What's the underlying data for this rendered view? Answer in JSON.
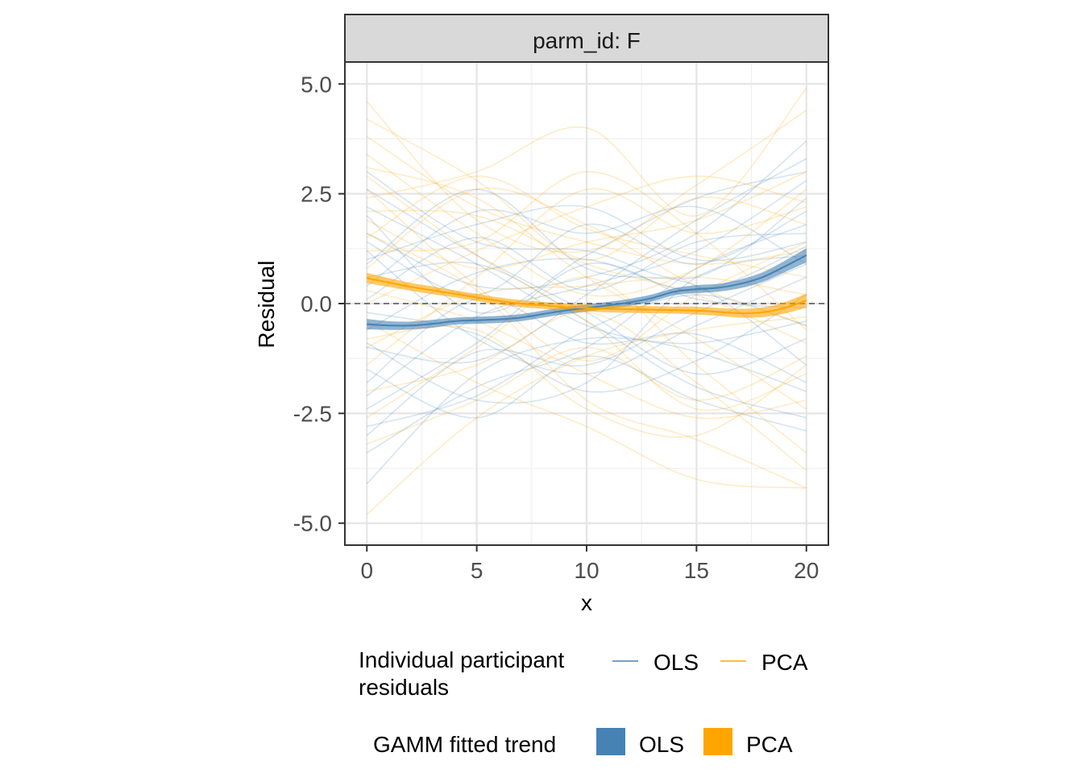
{
  "chart_data": {
    "type": "line",
    "facet_label": "parm_id: F",
    "xlabel": "x",
    "ylabel": "Residual",
    "xlim": [
      -1,
      21
    ],
    "ylim": [
      -5.5,
      5.5
    ],
    "x_ticks": [
      0,
      5,
      10,
      15,
      20
    ],
    "x_tick_labels": [
      "0",
      "5",
      "10",
      "15",
      "20"
    ],
    "y_ticks": [
      -5,
      -2.5,
      0,
      2.5,
      5
    ],
    "y_tick_labels": [
      "-5.0",
      "-2.5",
      "0.0",
      "2.5",
      "5.0"
    ],
    "reference_line": {
      "y": 0,
      "style": "dashed"
    },
    "grid": true,
    "colors": {
      "OLS": "#4682B4",
      "PCA": "#FFA500"
    },
    "individual_lines": {
      "x": [
        0,
        5,
        10,
        15,
        20
      ],
      "OLS": [
        [
          -4.1,
          -1.6,
          -0.8,
          -0.9,
          -0.4
        ],
        [
          3.0,
          1.4,
          1.2,
          0.6,
          2.4
        ],
        [
          1.6,
          0.4,
          0.6,
          1.6,
          3.7
        ],
        [
          -2.8,
          -2.1,
          -0.6,
          0.2,
          -0.5
        ],
        [
          0.4,
          2.1,
          1.6,
          2.2,
          0.9
        ],
        [
          -1.5,
          -2.6,
          -1.2,
          -2.2,
          -2.9
        ],
        [
          -3.4,
          -1.9,
          -1.0,
          0.8,
          1.8
        ],
        [
          2.2,
          0.9,
          -0.5,
          -1.1,
          -2.0
        ],
        [
          -0.6,
          0.7,
          1.0,
          0.3,
          1.3
        ],
        [
          1.2,
          -0.8,
          -1.6,
          -0.5,
          0.6
        ],
        [
          -2.1,
          -0.3,
          0.4,
          1.2,
          2.8
        ],
        [
          0.9,
          2.6,
          0.8,
          0.4,
          -1.4
        ],
        [
          -1.0,
          -1.3,
          0.2,
          1.9,
          3.3
        ],
        [
          2.6,
          1.1,
          -0.2,
          -1.6,
          -0.8
        ],
        [
          -0.2,
          -0.7,
          -2.0,
          -1.3,
          0.2
        ],
        [
          1.4,
          0.2,
          1.8,
          0.9,
          2.1
        ],
        [
          -3.0,
          -1.1,
          -1.4,
          -0.2,
          0.9
        ],
        [
          0.1,
          1.5,
          0.3,
          1.4,
          1.6
        ],
        [
          -1.8,
          0.1,
          -0.9,
          -0.7,
          -1.8
        ],
        [
          2.0,
          -0.2,
          1.1,
          2.4,
          3.0
        ],
        [
          -0.9,
          -2.2,
          -1.8,
          0.6,
          1.1
        ],
        [
          0.6,
          0.9,
          -0.4,
          -1.9,
          -2.6
        ],
        [
          -2.4,
          -0.9,
          0.9,
          0.1,
          -0.1
        ],
        [
          1.0,
          1.8,
          2.2,
          1.0,
          1.4
        ]
      ],
      "PCA": [
        [
          3.8,
          2.2,
          1.4,
          0.9,
          1.2
        ],
        [
          -4.8,
          -2.6,
          -1.2,
          -0.6,
          -0.3
        ],
        [
          2.4,
          3.0,
          4.0,
          2.0,
          4.9
        ],
        [
          1.6,
          0.3,
          -2.2,
          -3.1,
          -4.2
        ],
        [
          4.6,
          1.9,
          1.2,
          2.7,
          4.4
        ],
        [
          -2.6,
          -1.0,
          0.6,
          -1.4,
          -3.4
        ],
        [
          0.8,
          2.6,
          1.8,
          0.4,
          -0.5
        ],
        [
          2.9,
          1.1,
          -0.4,
          -2.4,
          -1.6
        ],
        [
          -1.4,
          0.6,
          2.6,
          1.6,
          2.2
        ],
        [
          3.4,
          1.6,
          0.2,
          0.8,
          2.6
        ],
        [
          -0.4,
          -1.8,
          -2.8,
          -4.0,
          -4.2
        ],
        [
          1.9,
          0.8,
          1.4,
          1.9,
          3.0
        ],
        [
          -3.2,
          -2.2,
          -1.0,
          -2.2,
          -1.2
        ],
        [
          2.1,
          2.0,
          0.9,
          0.2,
          -0.9
        ],
        [
          0.3,
          -0.4,
          -1.6,
          -2.6,
          -2.2
        ],
        [
          4.2,
          2.8,
          1.0,
          2.4,
          1.8
        ],
        [
          -1.0,
          0.2,
          0.4,
          0.6,
          0.2
        ],
        [
          1.2,
          1.4,
          3.0,
          1.6,
          -0.6
        ],
        [
          -2.0,
          -1.4,
          -0.2,
          -1.8,
          -3.8
        ],
        [
          2.6,
          0.4,
          -1.3,
          0.2,
          1.4
        ],
        [
          0.0,
          1.2,
          2.2,
          2.9,
          2.3
        ],
        [
          3.1,
          2.4,
          0.6,
          -0.8,
          -2.4
        ],
        [
          -0.8,
          -0.6,
          -2.4,
          -3.0,
          -1.4
        ],
        [
          1.5,
          2.9,
          1.7,
          1.1,
          0.6
        ]
      ]
    },
    "trend": {
      "x": [
        0,
        1,
        2,
        3,
        4,
        5,
        6,
        7,
        8,
        9,
        10,
        11,
        12,
        13,
        14,
        15,
        16,
        17,
        18,
        19,
        20
      ],
      "series": [
        {
          "name": "OLS",
          "values": [
            -0.47,
            -0.5,
            -0.5,
            -0.46,
            -0.4,
            -0.38,
            -0.36,
            -0.32,
            -0.24,
            -0.16,
            -0.1,
            -0.04,
            0.03,
            0.13,
            0.27,
            0.33,
            0.36,
            0.45,
            0.6,
            0.84,
            1.1
          ],
          "se": [
            0.12,
            0.1,
            0.09,
            0.09,
            0.08,
            0.08,
            0.08,
            0.08,
            0.08,
            0.08,
            0.08,
            0.08,
            0.08,
            0.08,
            0.08,
            0.09,
            0.09,
            0.1,
            0.11,
            0.13,
            0.16
          ]
        },
        {
          "name": "PCA",
          "values": [
            0.58,
            0.48,
            0.38,
            0.3,
            0.22,
            0.14,
            0.06,
            0.0,
            -0.04,
            -0.08,
            -0.1,
            -0.12,
            -0.13,
            -0.14,
            -0.15,
            -0.16,
            -0.19,
            -0.22,
            -0.2,
            -0.1,
            0.07
          ],
          "se": [
            0.12,
            0.1,
            0.09,
            0.09,
            0.08,
            0.08,
            0.08,
            0.08,
            0.08,
            0.08,
            0.08,
            0.08,
            0.08,
            0.08,
            0.08,
            0.09,
            0.09,
            0.1,
            0.11,
            0.13,
            0.16
          ]
        }
      ]
    },
    "legend": {
      "placement": "bottom",
      "lines_title": "Individual participant\nresiduals",
      "lines_entries": [
        "OLS",
        "PCA"
      ],
      "fill_title": "GAMM fitted trend",
      "fill_entries": [
        "OLS",
        "PCA"
      ]
    }
  }
}
